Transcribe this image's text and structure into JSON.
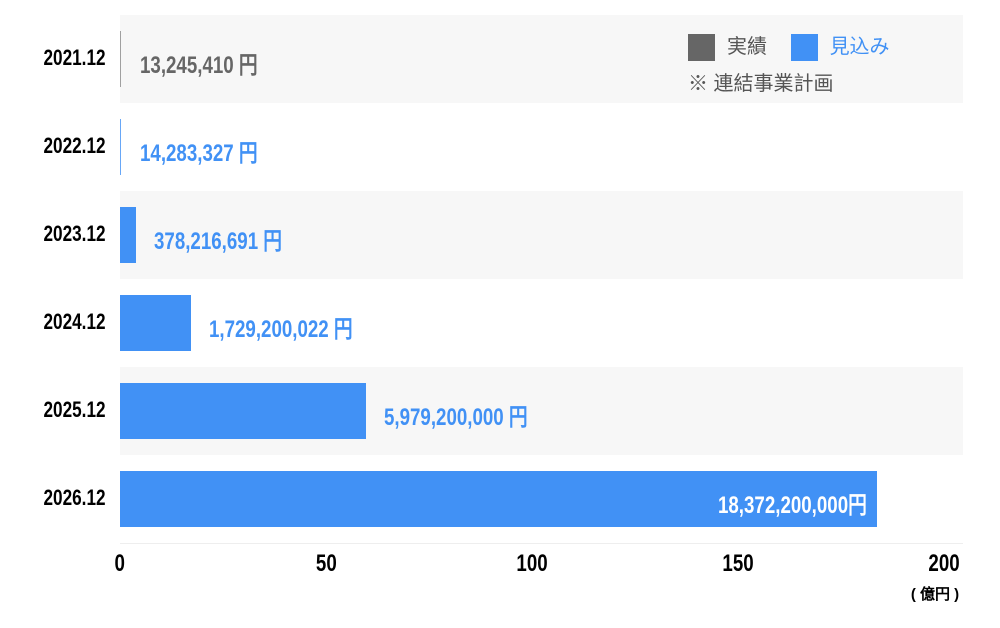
{
  "chart_data": {
    "type": "bar",
    "orientation": "horizontal",
    "categories": [
      "2021.12",
      "2022.12",
      "2023.12",
      "2024.12",
      "2025.12",
      "2026.12"
    ],
    "values": [
      0.1324541,
      0.14283327,
      3.78216691,
      17.29200022,
      59.792,
      183.722
    ],
    "value_labels": [
      "13,245,410 円",
      "14,283,327 円",
      "378,216,691 円",
      "1,729,200,022 円",
      "5,979,200,000 円",
      "18,372,200,000円"
    ],
    "series_type": [
      "actual",
      "forecast",
      "forecast",
      "forecast",
      "forecast",
      "forecast"
    ],
    "xlim": [
      0,
      200
    ],
    "xticks": [
      "0",
      "50",
      "100",
      "150",
      "200"
    ],
    "xunit": "( 億円 )",
    "legend": {
      "position": "top-right",
      "items": [
        {
          "label": "実績",
          "color": "#666666"
        },
        {
          "label": "見込み",
          "color": "#4191f5"
        }
      ],
      "note": "※ 連結事業計画"
    },
    "colors": {
      "actual": "#666666",
      "forecast": "#4191f5",
      "label_actual": "#666666",
      "label_forecast": "#4191f5"
    }
  }
}
